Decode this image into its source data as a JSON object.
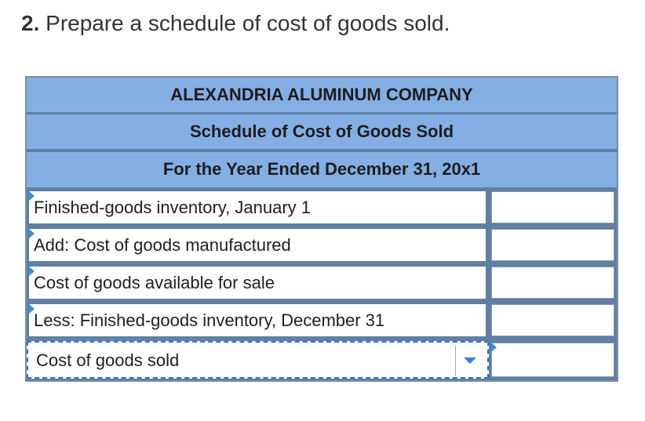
{
  "question": {
    "number": "2.",
    "text": "Prepare a schedule of cost of goods sold."
  },
  "schedule": {
    "company": "ALEXANDRIA ALUMINUM COMPANY",
    "title": "Schedule of Cost of Goods Sold",
    "period": "For the Year Ended December 31, 20x1",
    "rows": [
      {
        "label": "Finished-goods inventory, January 1",
        "value": ""
      },
      {
        "label": "Add: Cost of goods manufactured",
        "value": ""
      },
      {
        "label": "Cost of goods available for sale",
        "value": ""
      },
      {
        "label": "Less: Finished-goods inventory, December 31",
        "value": ""
      },
      {
        "label": "Cost of goods sold",
        "value": ""
      }
    ]
  },
  "colors": {
    "header_bg": "#84aee4",
    "grid": "#5f7fa3",
    "flag": "#3a8fe0",
    "focus_border": "#3a6fd8"
  },
  "icons": {
    "row_flag": "corner-triangle-icon",
    "dropdown": "chevron-down-icon"
  }
}
